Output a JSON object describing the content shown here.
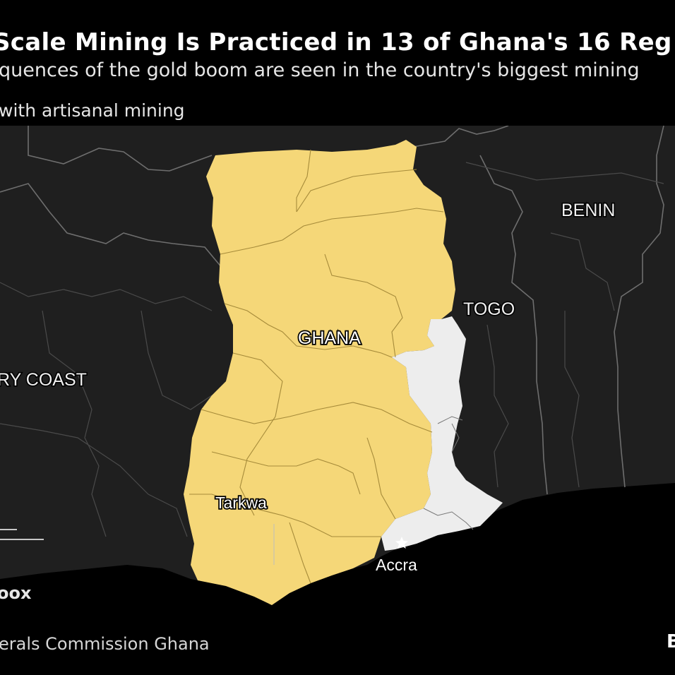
{
  "header": {
    "title": "Scale Mining Is Practiced in 13 of Ghana's 16 Reg",
    "subtitle": "quences of the gold boom are seen in the country's biggest mining",
    "legend_label": "with artisanal mining"
  },
  "map": {
    "labels": {
      "benin": "BENIN",
      "togo": "TOGO",
      "ghana": "GHANA",
      "ivory_coast": "RY COAST",
      "tarkwa": "Tarkwa",
      "accra": "Accra"
    },
    "colors": {
      "background": "#000000",
      "land": "#1f1f1f",
      "ocean": "#000000",
      "artisanal_mining_regions": "#f5d778",
      "other_regions": "#ededed",
      "borders": "#6e6e6e"
    },
    "capital_marker_icon": "star-icon"
  },
  "footer": {
    "credit": "oox",
    "source": "erals Commission Ghana",
    "brand": "B"
  }
}
